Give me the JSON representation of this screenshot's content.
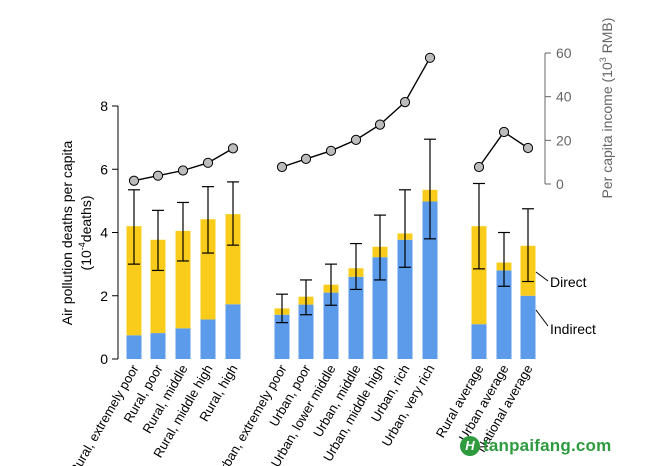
{
  "chart_data": {
    "type": "bar",
    "subtype": "stacked-bar-with-error-bars-and-income-line",
    "categories": [
      "Rural, extremely poor",
      "Rural, poor",
      "Rural, middle",
      "Rural, middle high",
      "Rural, high",
      "Urban, extremely poor",
      "Urban, poor",
      "Urban, lower middle",
      "Urban, middle",
      "Urban, middle high",
      "Urban, rich",
      "Urban, very rich",
      "Rural average",
      "Urban average",
      "National average"
    ],
    "groups": [
      [
        0,
        1,
        2,
        3,
        4
      ],
      [
        5,
        6,
        7,
        8,
        9,
        10,
        11
      ],
      [
        12,
        13,
        14
      ]
    ],
    "series": [
      {
        "name": "Indirect",
        "color": "#5b9bea",
        "values": [
          0.75,
          0.82,
          0.97,
          1.25,
          1.73,
          1.4,
          1.72,
          2.1,
          2.6,
          3.22,
          3.77,
          4.98,
          1.1,
          2.8,
          2.0
        ]
      },
      {
        "name": "Direct",
        "color": "#f9cc1c",
        "values": [
          3.45,
          2.95,
          3.08,
          3.17,
          2.85,
          0.2,
          0.25,
          0.25,
          0.27,
          0.33,
          0.2,
          0.37,
          3.1,
          0.25,
          1.58
        ]
      }
    ],
    "error_bars": {
      "center": [
        4.2,
        3.77,
        4.05,
        4.42,
        4.58,
        1.4,
        1.72,
        2.1,
        2.6,
        3.22,
        3.77,
        4.98,
        4.2,
        2.8,
        3.58
      ],
      "low": [
        3.0,
        2.8,
        3.1,
        3.35,
        3.6,
        1.15,
        1.4,
        1.7,
        2.2,
        2.5,
        2.9,
        3.8,
        2.85,
        2.3,
        2.45
      ],
      "high": [
        5.35,
        4.7,
        4.95,
        5.45,
        5.6,
        2.05,
        2.5,
        3.0,
        3.65,
        4.55,
        5.35,
        6.95,
        5.55,
        4.0,
        4.75
      ]
    },
    "income_line": {
      "name": "Per capita income",
      "values": [
        1.5,
        3.8,
        6.2,
        9.7,
        16.3,
        7.8,
        11.5,
        15.2,
        20.2,
        27.2,
        37.5,
        57.8,
        7.8,
        23.8,
        16.5
      ],
      "segments": [
        [
          0,
          4
        ],
        [
          5,
          11
        ],
        [
          12,
          14
        ]
      ],
      "color": "#000000",
      "marker_color": "#bcbcbc"
    },
    "ylabel_lines": [
      "Air pollution deaths per capita",
      "(10",
      "deaths)"
    ],
    "ylabel_exponent": "-4",
    "ylim": [
      0,
      8
    ],
    "yticks": [
      "0",
      "2",
      "4",
      "6",
      "8"
    ],
    "y2label_parts": [
      "Per capita income (10",
      "3",
      " RMB)"
    ],
    "y2lim": [
      0,
      60
    ],
    "y2ticks": [
      "0",
      "20",
      "40",
      "60"
    ],
    "annotations": [
      "Direct",
      "Indirect"
    ],
    "grid": false
  },
  "watermark": {
    "logo_letter": "H",
    "text": "tanpaifang.com"
  }
}
